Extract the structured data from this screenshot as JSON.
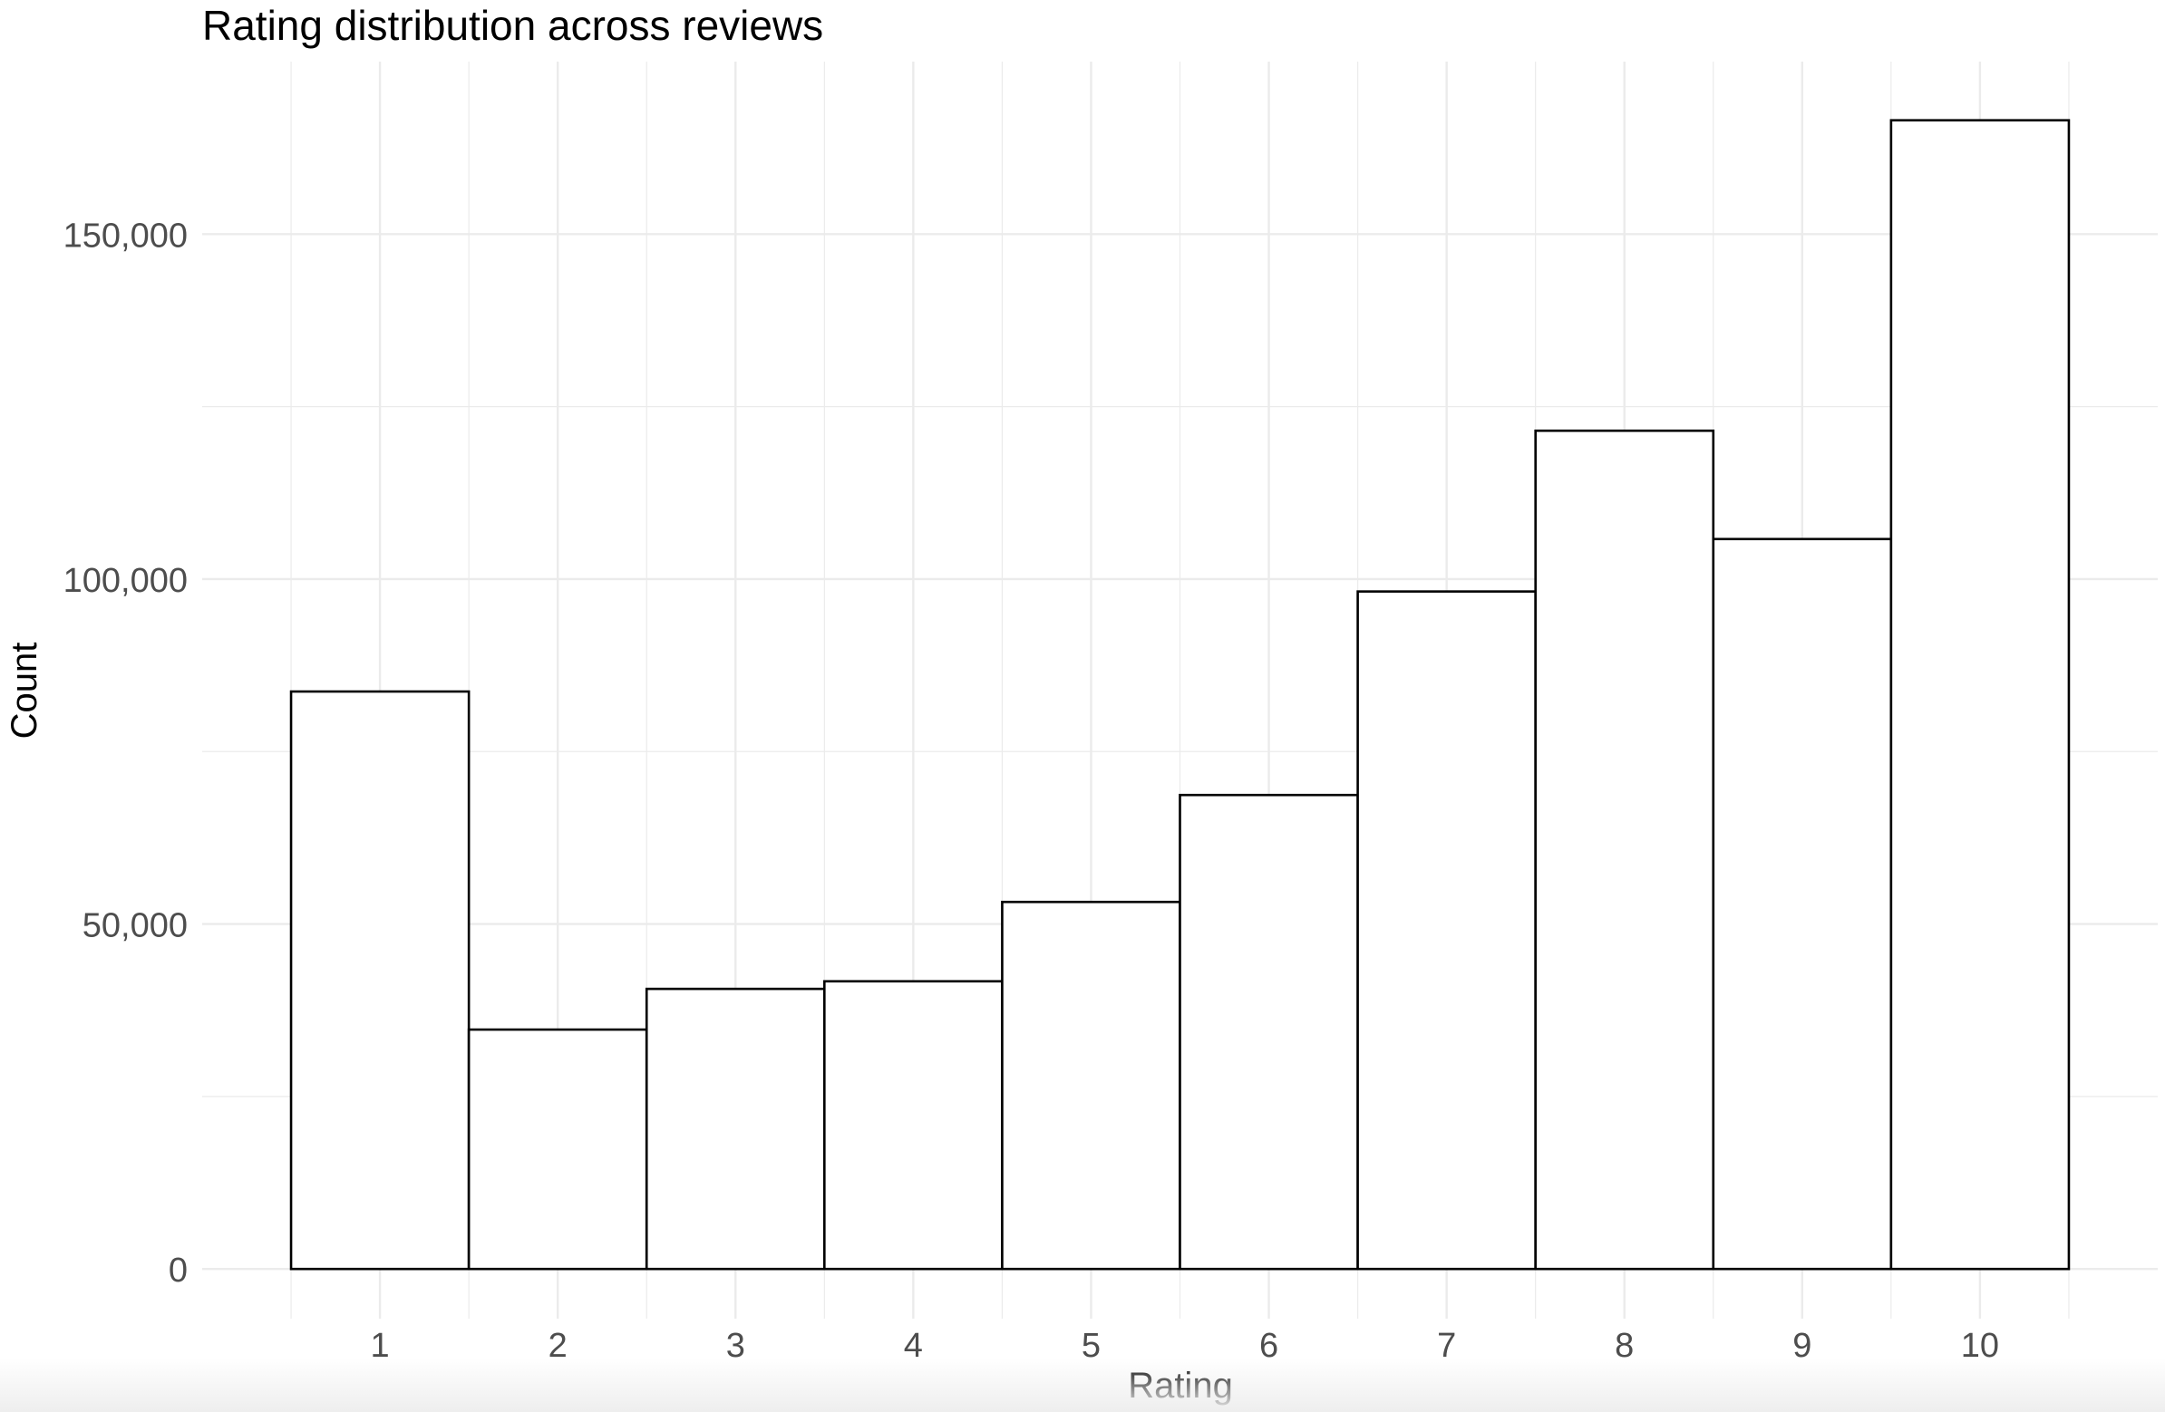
{
  "chart_data": {
    "type": "bar",
    "title": "Rating distribution across reviews",
    "xlabel": "Rating",
    "ylabel": "Count",
    "categories": [
      "1",
      "2",
      "3",
      "4",
      "5",
      "6",
      "7",
      "8",
      "9",
      "10"
    ],
    "values": [
      83700,
      34700,
      40600,
      41700,
      53200,
      68700,
      98200,
      121500,
      105800,
      166500
    ],
    "ylim": [
      -7200,
      175000
    ],
    "yticks": [
      0,
      50000,
      100000,
      150000
    ],
    "ytick_labels": [
      "0",
      "50,000",
      "100,000",
      "150,000"
    ],
    "grid": true,
    "legend": "none",
    "bar_fill": "#ffffff",
    "bar_stroke": "#000000",
    "grid_color": "#ebebeb",
    "text_color": "#4d4d4d",
    "title_color": "#000000"
  }
}
